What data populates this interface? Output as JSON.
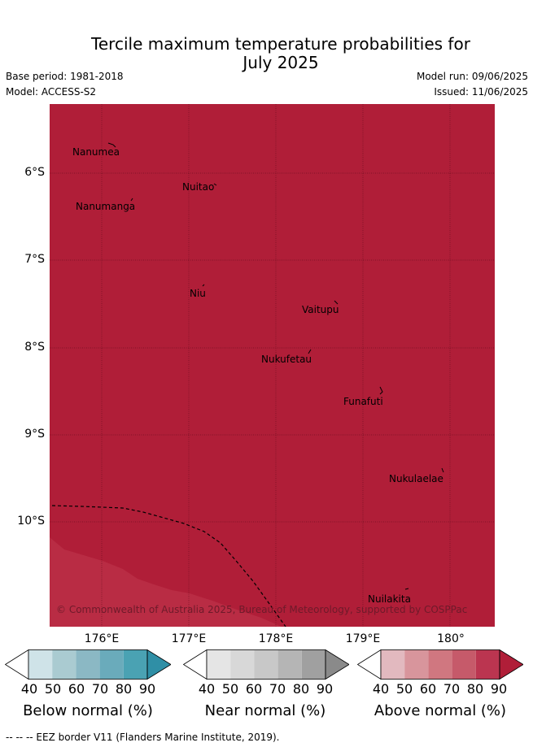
{
  "title_line1": "Tercile maximum temperature probabilities for",
  "title_line2": "July 2025",
  "base_period": "Base period: 1981-2018",
  "model": "Model: ACCESS-S2",
  "model_run": "Model run: 09/06/2025",
  "issued": "Issued: 11/06/2025",
  "lat_labels": [
    "6°S",
    "7°S",
    "8°S",
    "9°S",
    "10°S"
  ],
  "lon_labels": [
    "176°E",
    "177°E",
    "178°E",
    "179°E",
    "180°"
  ],
  "islands": [
    "Nanumea",
    "Nuitao",
    "Nanumanga",
    "Niu",
    "Vaitupu",
    "Nukufetau",
    "Funafuti",
    "Nukulaelae",
    "Nuilakita"
  ],
  "copyright": "© Commonwealth of Australia 2025, Bureau of Meteorology, supported by COSPPac",
  "colorbars": [
    {
      "label": "Below normal (%)",
      "ticks": [
        "40",
        "50",
        "60",
        "70",
        "80",
        "90"
      ],
      "colors": [
        "#ffffff",
        "#cfe3e8",
        "#aacbd1",
        "#8bb8c4",
        "#6aabbb",
        "#4aa2b3",
        "#2f8fa6"
      ]
    },
    {
      "label": "Near normal (%)",
      "ticks": [
        "40",
        "50",
        "60",
        "70",
        "80",
        "90"
      ],
      "colors": [
        "#ffffff",
        "#e5e5e5",
        "#d8d8d8",
        "#c8c8c8",
        "#b5b5b5",
        "#a0a0a0",
        "#8a8a8a"
      ]
    },
    {
      "label": "Above normal (%)",
      "ticks": [
        "40",
        "50",
        "60",
        "70",
        "80",
        "90"
      ],
      "colors": [
        "#ffffff",
        "#e2b9bf",
        "#d8959c",
        "#d07780",
        "#c65a6a",
        "#bb3550",
        "#b01e38"
      ]
    }
  ],
  "footer": "--  --  -- EEZ border V11 (Flanders Marine Institute, 2019)."
}
